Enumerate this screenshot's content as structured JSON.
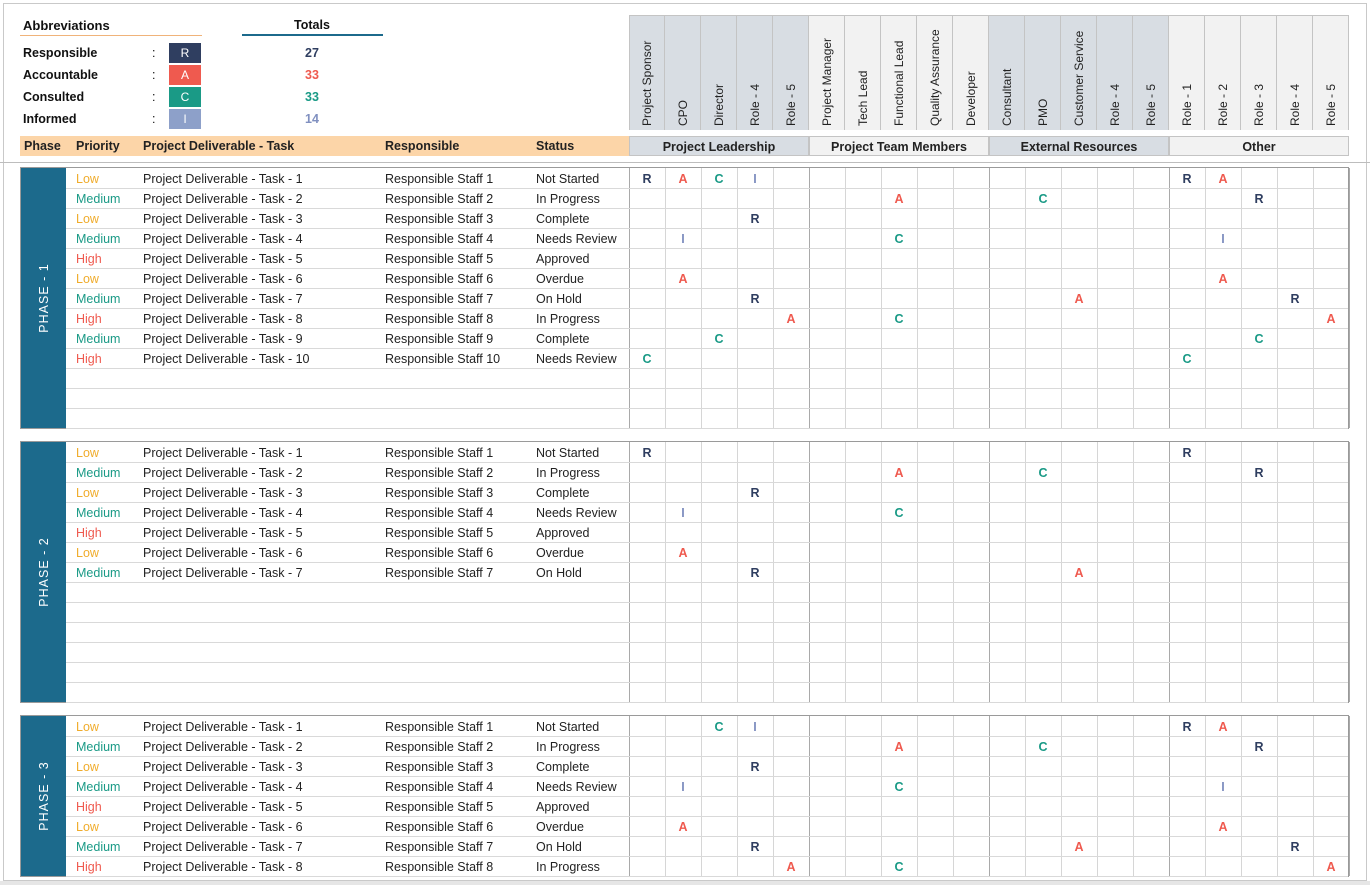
{
  "legend": {
    "title": "Abbreviations",
    "items": [
      {
        "label": "Responsible",
        "code": "R",
        "color": "#2f3e60"
      },
      {
        "label": "Accountable",
        "code": "A",
        "color": "#ef5a4f"
      },
      {
        "label": "Consulted",
        "code": "C",
        "color": "#1a9a86"
      },
      {
        "label": "Informed",
        "code": "I",
        "color": "#8da0c9"
      }
    ],
    "colon": ":"
  },
  "totals": {
    "title": "Totals",
    "values": [
      "27",
      "33",
      "33",
      "14"
    ],
    "colors": [
      "#2f3e60",
      "#ef5a4f",
      "#1a9a86",
      "#8090c0"
    ]
  },
  "roles": [
    "Project Sponsor",
    "CPO",
    "Director",
    "Role - 4",
    "Role - 5",
    "Project Manager",
    "Tech Lead",
    "Functional Lead",
    "Quality Assurance",
    "Developer",
    "Consultant",
    "PMO",
    "Customer Service",
    "Role - 4",
    "Role - 5",
    "Role - 1",
    "Role - 2",
    "Role - 3",
    "Role - 4",
    "Role - 5"
  ],
  "groups": [
    {
      "label": "Project Leadership",
      "bg": "#d8dde3"
    },
    {
      "label": "Project Team Members",
      "bg": "#f2f2f2"
    },
    {
      "label": "External Resources",
      "bg": "#d8dde3"
    },
    {
      "label": "Other",
      "bg": "#f2f2f2"
    }
  ],
  "columns": {
    "phase": "Phase",
    "priority": "Priority",
    "task": "Project Deliverable - Task",
    "responsible": "Responsible",
    "status": "Status"
  },
  "phases": [
    {
      "label": "PHASE - 1",
      "empty_rows": 3,
      "rows": [
        {
          "priority": "Low",
          "task": "Project Deliverable - Task - 1",
          "responsible": "Responsible Staff 1",
          "status": "Not Started",
          "raci": {
            "0": "R",
            "1": "A",
            "2": "C",
            "3": "I",
            "15": "R",
            "16": "A"
          }
        },
        {
          "priority": "Medium",
          "task": "Project Deliverable - Task - 2",
          "responsible": "Responsible Staff 2",
          "status": "In Progress",
          "raci": {
            "7": "A",
            "11": "C",
            "17": "R"
          }
        },
        {
          "priority": "Low",
          "task": "Project Deliverable - Task - 3",
          "responsible": "Responsible Staff 3",
          "status": "Complete",
          "raci": {
            "3": "R"
          }
        },
        {
          "priority": "Medium",
          "task": "Project Deliverable - Task - 4",
          "responsible": "Responsible Staff 4",
          "status": "Needs Review",
          "raci": {
            "1": "I",
            "7": "C",
            "16": "I"
          }
        },
        {
          "priority": "High",
          "task": "Project Deliverable - Task - 5",
          "responsible": "Responsible Staff 5",
          "status": "Approved",
          "raci": {}
        },
        {
          "priority": "Low",
          "task": "Project Deliverable - Task - 6",
          "responsible": "Responsible Staff 6",
          "status": "Overdue",
          "raci": {
            "1": "A",
            "16": "A"
          }
        },
        {
          "priority": "Medium",
          "task": "Project Deliverable - Task - 7",
          "responsible": "Responsible Staff 7",
          "status": "On Hold",
          "raci": {
            "3": "R",
            "12": "A",
            "18": "R"
          }
        },
        {
          "priority": "High",
          "task": "Project Deliverable - Task - 8",
          "responsible": "Responsible Staff 8",
          "status": "In Progress",
          "raci": {
            "4": "A",
            "7": "C",
            "19": "A"
          }
        },
        {
          "priority": "Medium",
          "task": "Project Deliverable - Task - 9",
          "responsible": "Responsible Staff 9",
          "status": "Complete",
          "raci": {
            "2": "C",
            "17": "C"
          }
        },
        {
          "priority": "High",
          "task": "Project Deliverable - Task - 10",
          "responsible": "Responsible Staff 10",
          "status": "Needs Review",
          "raci": {
            "0": "C",
            "15": "C"
          }
        }
      ]
    },
    {
      "label": "PHASE - 2",
      "empty_rows": 6,
      "rows": [
        {
          "priority": "Low",
          "task": "Project Deliverable - Task - 1",
          "responsible": "Responsible Staff 1",
          "status": "Not Started",
          "raci": {
            "0": "R",
            "15": "R"
          }
        },
        {
          "priority": "Medium",
          "task": "Project Deliverable - Task - 2",
          "responsible": "Responsible Staff 2",
          "status": "In Progress",
          "raci": {
            "7": "A",
            "11": "C",
            "17": "R"
          }
        },
        {
          "priority": "Low",
          "task": "Project Deliverable - Task - 3",
          "responsible": "Responsible Staff 3",
          "status": "Complete",
          "raci": {
            "3": "R"
          }
        },
        {
          "priority": "Medium",
          "task": "Project Deliverable - Task - 4",
          "responsible": "Responsible Staff 4",
          "status": "Needs Review",
          "raci": {
            "1": "I",
            "7": "C"
          }
        },
        {
          "priority": "High",
          "task": "Project Deliverable - Task - 5",
          "responsible": "Responsible Staff 5",
          "status": "Approved",
          "raci": {}
        },
        {
          "priority": "Low",
          "task": "Project Deliverable - Task - 6",
          "responsible": "Responsible Staff 6",
          "status": "Overdue",
          "raci": {
            "1": "A"
          }
        },
        {
          "priority": "Medium",
          "task": "Project Deliverable - Task - 7",
          "responsible": "Responsible Staff 7",
          "status": "On Hold",
          "raci": {
            "3": "R",
            "12": "A"
          }
        }
      ]
    },
    {
      "label": "PHASE - 3",
      "empty_rows": 0,
      "rows": [
        {
          "priority": "Low",
          "task": "Project Deliverable - Task - 1",
          "responsible": "Responsible Staff 1",
          "status": "Not Started",
          "raci": {
            "2": "C",
            "3": "I",
            "15": "R",
            "16": "A"
          }
        },
        {
          "priority": "Medium",
          "task": "Project Deliverable - Task - 2",
          "responsible": "Responsible Staff 2",
          "status": "In Progress",
          "raci": {
            "7": "A",
            "11": "C",
            "17": "R"
          }
        },
        {
          "priority": "Low",
          "task": "Project Deliverable - Task - 3",
          "responsible": "Responsible Staff 3",
          "status": "Complete",
          "raci": {
            "3": "R"
          }
        },
        {
          "priority": "Medium",
          "task": "Project Deliverable - Task - 4",
          "responsible": "Responsible Staff 4",
          "status": "Needs Review",
          "raci": {
            "1": "I",
            "7": "C",
            "16": "I"
          }
        },
        {
          "priority": "High",
          "task": "Project Deliverable - Task - 5",
          "responsible": "Responsible Staff 5",
          "status": "Approved",
          "raci": {}
        },
        {
          "priority": "Low",
          "task": "Project Deliverable - Task - 6",
          "responsible": "Responsible Staff 6",
          "status": "Overdue",
          "raci": {
            "1": "A",
            "16": "A"
          }
        },
        {
          "priority": "Medium",
          "task": "Project Deliverable - Task - 7",
          "responsible": "Responsible Staff 7",
          "status": "On Hold",
          "raci": {
            "3": "R",
            "12": "A",
            "18": "R"
          }
        },
        {
          "priority": "High",
          "task": "Project Deliverable - Task - 8",
          "responsible": "Responsible Staff 8",
          "status": "In Progress",
          "raci": {
            "4": "A",
            "7": "C",
            "19": "A"
          }
        }
      ]
    }
  ]
}
